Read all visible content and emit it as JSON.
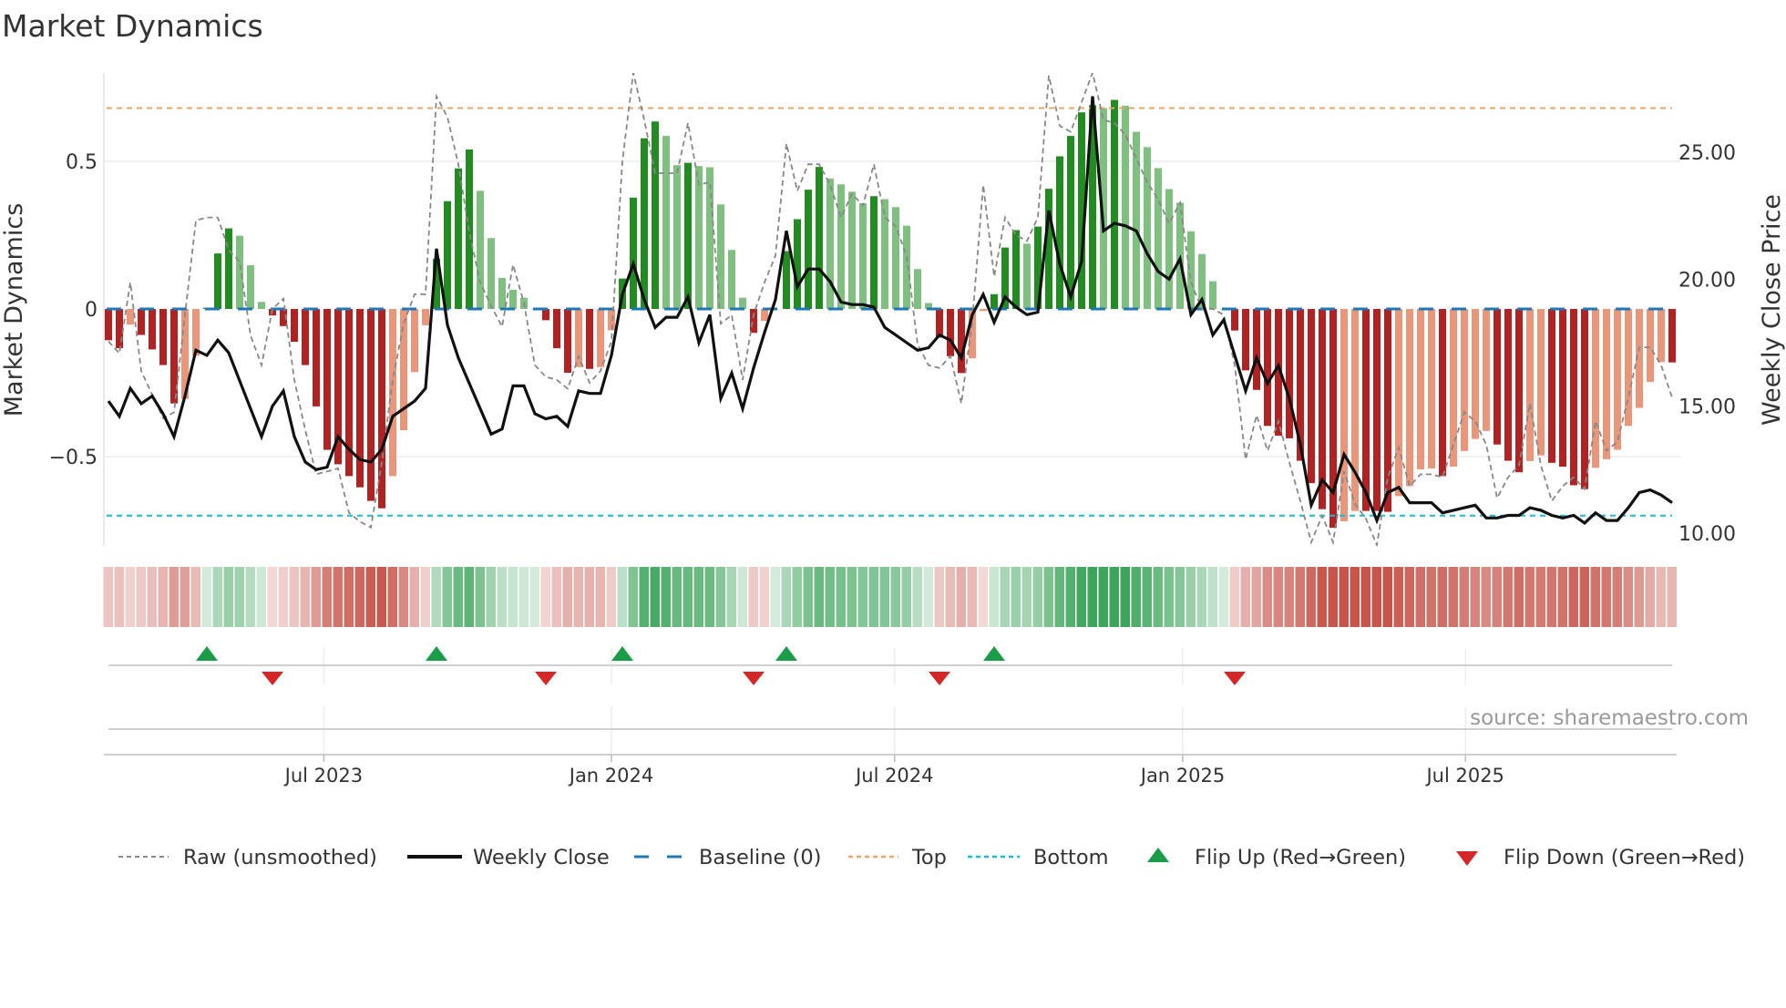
{
  "chart_data": {
    "type": "bar",
    "title": "Market Dynamics",
    "ylabel": "Market Dynamics",
    "ylabel_right": "Weekly Close Price",
    "ylim": [
      -0.8,
      0.8
    ],
    "ylim_right": [
      9.5,
      28.1
    ],
    "yticks": [
      {
        "value": 0.5,
        "label": "0.5"
      },
      {
        "value": 0,
        "label": "0"
      },
      {
        "value": -0.5,
        "label": "−0.5"
      }
    ],
    "yticks_right": [
      {
        "value": 25,
        "label": "25.00"
      },
      {
        "value": 20,
        "label": "20.00"
      },
      {
        "value": 15,
        "label": "15.00"
      },
      {
        "value": 10,
        "label": "10.00"
      }
    ],
    "xticks": [
      {
        "week": 19.7,
        "label": "Jul 2023"
      },
      {
        "week": 46.0,
        "label": "Jan 2024"
      },
      {
        "week": 71.9,
        "label": "Jul 2024"
      },
      {
        "week": 98.25,
        "label": "Jan 2025"
      },
      {
        "week": 124.1,
        "label": "Jul 2025"
      }
    ],
    "top_level": 0.68,
    "bottom_level": -0.7,
    "baseline": 0,
    "bars": [
      -0.106,
      -0.133,
      -0.053,
      -0.088,
      -0.137,
      -0.19,
      -0.32,
      -0.305,
      -0.158,
      0.004,
      0.188,
      0.273,
      0.248,
      0.148,
      0.024,
      -0.022,
      -0.058,
      -0.111,
      -0.19,
      -0.33,
      -0.477,
      -0.526,
      -0.566,
      -0.604,
      -0.65,
      -0.675,
      -0.566,
      -0.411,
      -0.214,
      -0.055,
      0.17,
      0.365,
      0.476,
      0.54,
      0.4,
      0.24,
      0.105,
      0.065,
      0.038,
      0.0,
      -0.038,
      -0.133,
      -0.216,
      -0.197,
      -0.203,
      -0.197,
      -0.072,
      0.103,
      0.377,
      0.578,
      0.635,
      0.586,
      0.487,
      0.495,
      0.484,
      0.48,
      0.354,
      0.2,
      0.038,
      -0.081,
      -0.04,
      0,
      0.196,
      0.304,
      0.404,
      0.481,
      0.442,
      0.422,
      0.397,
      0.358,
      0.382,
      0.372,
      0.345,
      0.282,
      0.135,
      0.02,
      -0.097,
      -0.16,
      -0.217,
      -0.167,
      -0.007,
      0.05,
      0.208,
      0.267,
      0.221,
      0.279,
      0.407,
      0.517,
      0.586,
      0.666,
      0.69,
      0.68,
      0.708,
      0.688,
      0.6,
      0.548,
      0.477,
      0.406,
      0.36,
      0.263,
      0.186,
      0.094,
      0,
      -0.073,
      -0.208,
      -0.274,
      -0.396,
      -0.429,
      -0.438,
      -0.514,
      -0.59,
      -0.678,
      -0.741,
      -0.719,
      -0.684,
      -0.684,
      -0.684,
      -0.687,
      -0.634,
      -0.6,
      -0.543,
      -0.54,
      -0.566,
      -0.534,
      -0.481,
      -0.44,
      -0.413,
      -0.459,
      -0.514,
      -0.553,
      -0.515,
      -0.496,
      -0.521,
      -0.534,
      -0.597,
      -0.61,
      -0.538,
      -0.509,
      -0.477,
      -0.396,
      -0.335,
      -0.247,
      -0.18,
      -0.181
    ],
    "bar_strong": [
      1,
      1,
      0,
      1,
      1,
      1,
      1,
      0,
      0,
      1,
      1,
      1,
      0,
      0,
      0,
      1,
      1,
      1,
      1,
      1,
      1,
      1,
      1,
      1,
      1,
      1,
      0,
      0,
      0,
      0,
      1,
      1,
      1,
      1,
      0,
      0,
      0,
      0,
      0,
      0,
      1,
      1,
      1,
      0,
      1,
      0,
      0,
      1,
      1,
      1,
      1,
      0,
      0,
      1,
      0,
      0,
      0,
      0,
      0,
      1,
      0,
      0,
      1,
      1,
      1,
      1,
      0,
      0,
      0,
      0,
      1,
      0,
      0,
      0,
      0,
      0,
      1,
      1,
      1,
      0,
      0,
      1,
      1,
      1,
      0,
      1,
      1,
      1,
      1,
      1,
      1,
      0,
      1,
      0,
      0,
      0,
      0,
      0,
      0,
      0,
      0,
      0,
      0,
      1,
      1,
      1,
      1,
      1,
      1,
      1,
      1,
      1,
      1,
      0,
      0,
      1,
      1,
      1,
      0,
      0,
      0,
      0,
      1,
      0,
      0,
      0,
      0,
      1,
      1,
      1,
      0,
      0,
      1,
      1,
      1,
      1,
      0,
      0,
      0,
      0,
      0,
      0,
      0,
      1
    ],
    "raw": [
      -0.11,
      -0.15,
      0.09,
      -0.21,
      -0.29,
      -0.37,
      -0.35,
      -0.02,
      0.3,
      0.31,
      0.31,
      0.2,
      0.16,
      -0.09,
      -0.19,
      0,
      0.035,
      -0.24,
      -0.41,
      -0.56,
      -0.55,
      -0.54,
      -0.69,
      -0.72,
      -0.74,
      -0.52,
      -0.24,
      -0.05,
      0.05,
      0.05,
      0.72,
      0.65,
      0.49,
      0.26,
      0.09,
      0.01,
      -0.06,
      0.15,
      0.02,
      -0.19,
      -0.23,
      -0.24,
      -0.27,
      -0.16,
      -0.25,
      -0.21,
      -0.11,
      0.5,
      0.8,
      0.64,
      0.46,
      0.46,
      0.46,
      0.63,
      0.42,
      0.43,
      -0.05,
      -0.02,
      -0.24,
      -0.02,
      0.09,
      0.18,
      0.56,
      0.4,
      0.49,
      0.49,
      0.42,
      0.31,
      0.39,
      0.35,
      0.49,
      0.31,
      0.28,
      0.18,
      -0.12,
      -0.19,
      -0.2,
      -0.16,
      -0.32,
      -0.04,
      0.42,
      0.11,
      0.31,
      0.25,
      0.23,
      0.31,
      0.79,
      0.62,
      0.6,
      0.7,
      0.8,
      0.64,
      0.63,
      0.59,
      0.51,
      0.43,
      0.37,
      0.29,
      0.36,
      0.09,
      0,
      0,
      -0.02,
      -0.19,
      -0.51,
      -0.36,
      -0.48,
      -0.38,
      -0.52,
      -0.65,
      -0.79,
      -0.7,
      -0.79,
      -0.55,
      -0.66,
      -0.71,
      -0.8,
      -0.57,
      -0.47,
      -0.6,
      -0.56,
      -0.56,
      -0.57,
      -0.46,
      -0.35,
      -0.38,
      -0.46,
      -0.64,
      -0.57,
      -0.53,
      -0.32,
      -0.53,
      -0.65,
      -0.6,
      -0.57,
      -0.61,
      -0.38,
      -0.48,
      -0.45,
      -0.3,
      -0.13,
      -0.13,
      -0.19,
      -0.3
    ],
    "weekly_close": [
      15.2,
      14.6,
      15.7,
      15.1,
      15.4,
      14.7,
      13.8,
      15.4,
      17.2,
      17.0,
      17.6,
      17.1,
      16.0,
      14.9,
      13.8,
      15.0,
      15.6,
      13.8,
      12.8,
      12.5,
      12.6,
      13.8,
      13.3,
      12.9,
      12.8,
      13.3,
      14.6,
      14.9,
      15.2,
      15.7,
      21.2,
      18.2,
      16.9,
      15.9,
      14.9,
      13.9,
      14.1,
      15.8,
      15.8,
      14.7,
      14.5,
      14.6,
      14.2,
      15.6,
      15.5,
      15.5,
      17.0,
      19.4,
      20.6,
      19.2,
      18.1,
      18.5,
      18.5,
      19.3,
      17.5,
      18.6,
      15.3,
      16.3,
      14.9,
      16.5,
      17.9,
      19.2,
      21.9,
      19.7,
      20.4,
      20.4,
      19.9,
      19.1,
      19.0,
      19.0,
      18.9,
      18.1,
      17.8,
      17.5,
      17.2,
      17.3,
      17.8,
      17.6,
      16.9,
      18.6,
      19.4,
      18.3,
      19.3,
      18.9,
      18.6,
      18.7,
      22.7,
      20.6,
      19.3,
      20.7,
      27.2,
      21.9,
      22.2,
      22.1,
      21.9,
      21.0,
      20.3,
      20.0,
      20.8,
      18.6,
      19.2,
      17.8,
      18.4,
      17.0,
      15.6,
      16.9,
      15.9,
      16.6,
      15.3,
      13.5,
      11.1,
      12.1,
      11.6,
      13.1,
      12.4,
      11.6,
      10.5,
      11.6,
      11.8,
      11.2,
      11.2,
      11.2,
      10.8,
      10.9,
      11.0,
      11.1,
      10.6,
      10.6,
      10.7,
      10.7,
      11.0,
      10.9,
      10.7,
      10.6,
      10.7,
      10.4,
      10.8,
      10.5,
      10.5,
      11.0,
      11.6,
      11.7,
      11.5,
      11.2
    ],
    "flip_up_weeks": [
      9,
      30,
      47,
      62,
      81
    ],
    "flip_down_weeks": [
      15,
      40,
      59,
      76,
      103
    ],
    "legend": [
      {
        "key": "raw",
        "label": "Raw (unsmoothed)"
      },
      {
        "key": "close",
        "label": "Weekly Close"
      },
      {
        "key": "baseline",
        "label": "Baseline (0)"
      },
      {
        "key": "top",
        "label": "Top"
      },
      {
        "key": "bottom",
        "label": "Bottom"
      },
      {
        "key": "flip_up",
        "label": "Flip Up (Red→Green)"
      },
      {
        "key": "flip_down",
        "label": "Flip Down (Green→Red)"
      }
    ],
    "legend_position": "bottom",
    "source": "source: sharemaestro.com"
  },
  "colors": {
    "strong_green": "#228b22",
    "weak_green": "#7fbf7f",
    "strong_red": "#b22222",
    "weak_red": "#e9967a",
    "close": "#111111",
    "raw": "#888888",
    "baseline": "#1f77b4",
    "top": "#e8a868",
    "bottom": "#17becf",
    "flip_up": "#1a9c48",
    "flip_down": "#d62728"
  }
}
